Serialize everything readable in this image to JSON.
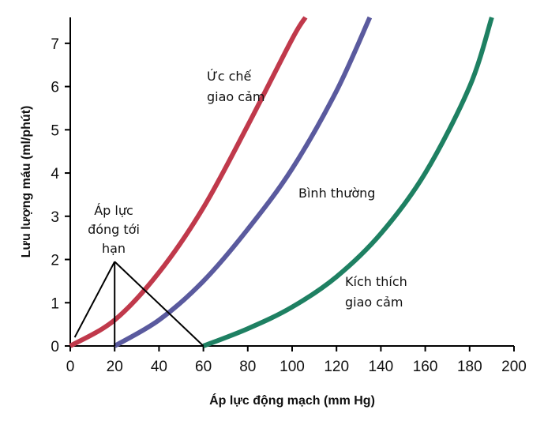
{
  "chart_data": {
    "type": "line",
    "xlabel": "Áp lực động mạch (mm Hg)",
    "ylabel": "Lưu lượng máu (ml/phút)",
    "xlim": [
      0,
      200
    ],
    "ylim": [
      0,
      7.6
    ],
    "x_ticks": [
      "0",
      "20",
      "40",
      "60",
      "80",
      "100",
      "120",
      "140",
      "160",
      "180",
      "200"
    ],
    "y_ticks": [
      "0",
      "1",
      "2",
      "3",
      "4",
      "5",
      "6",
      "7"
    ],
    "grid": false,
    "series": [
      {
        "name": "Ức chế giao cảm",
        "label_lines": [
          "Ức chế",
          "giao cảm"
        ],
        "color": "#c0394b",
        "x": [
          0,
          20,
          40,
          60,
          80,
          100,
          106
        ],
        "y": [
          0,
          0.6,
          1.7,
          3.2,
          5.1,
          7.1,
          7.6
        ]
      },
      {
        "name": "Bình thường",
        "label_lines": [
          "Bình thường"
        ],
        "color": "#5a5a9e",
        "x": [
          20,
          40,
          60,
          80,
          100,
          120,
          135
        ],
        "y": [
          0,
          0.6,
          1.5,
          2.7,
          4.1,
          5.9,
          7.6
        ]
      },
      {
        "name": "Kích thích giao cảm",
        "label_lines": [
          "Kích thích",
          "giao cảm"
        ],
        "color": "#1e8062",
        "x": [
          60,
          80,
          100,
          120,
          140,
          160,
          180,
          190
        ],
        "y": [
          0,
          0.4,
          0.9,
          1.6,
          2.6,
          4.0,
          6.0,
          7.6
        ]
      }
    ],
    "annotations": [
      {
        "label_lines": [
          "Áp lực",
          "đóng tới",
          "hạn"
        ],
        "pointer_apex": [
          20,
          1.95
        ],
        "pointer_targets": [
          [
            2,
            0.2
          ],
          [
            20,
            0
          ],
          [
            60,
            0
          ]
        ]
      }
    ]
  }
}
